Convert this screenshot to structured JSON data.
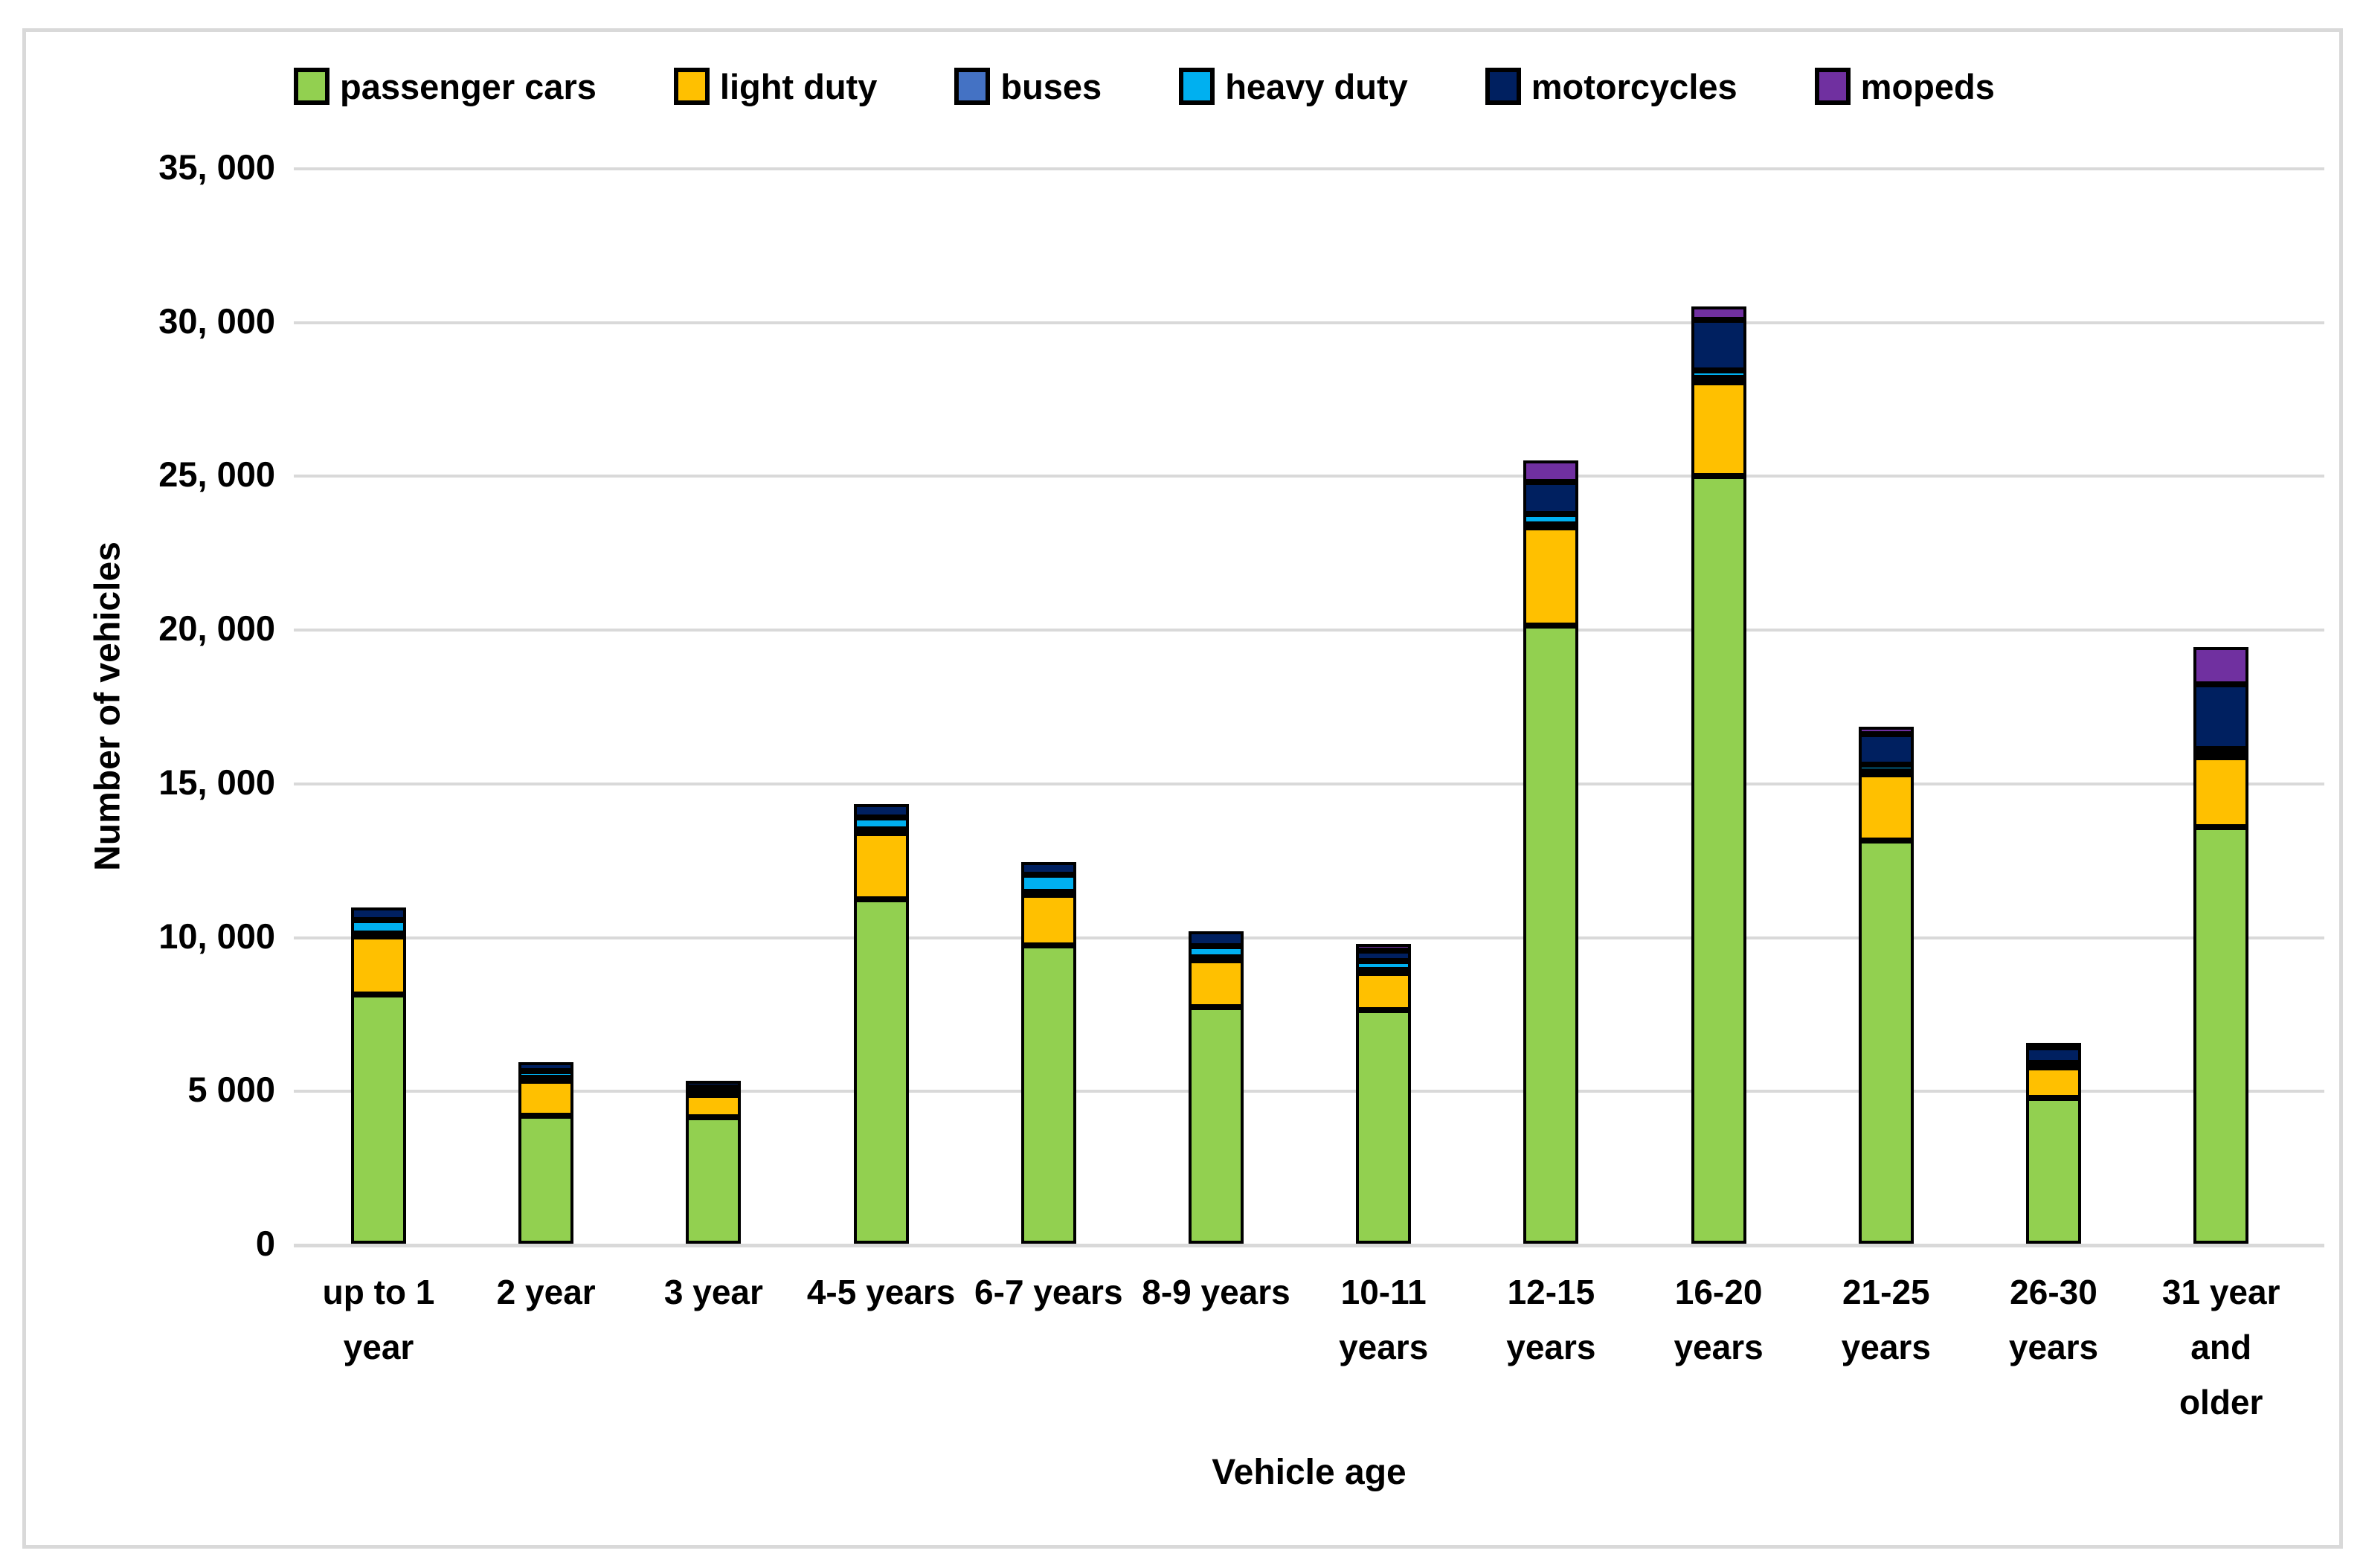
{
  "chart_data": {
    "type": "bar",
    "stacked": true,
    "xlabel": "Vehicle age",
    "ylabel": "Number of vehicles",
    "ylim": [
      0,
      35000
    ],
    "ytick_step": 5000,
    "grid": true,
    "legend_position": "top",
    "gridline_color": "#d9d9d9",
    "bar_border_color": "#000000",
    "ytick_labels_top_to_bottom": [
      "35, 000",
      "30, 000",
      "25, 000",
      "20, 000",
      "15, 000",
      "10, 000",
      "5 000",
      "0"
    ],
    "categories": [
      "up to 1\nyear",
      "2 year",
      "3 year",
      "4-5 years",
      "6-7 years",
      "8-9 years",
      "10-11\nyears",
      "12-15\nyears",
      "16-20\nyears",
      "21-25\nyears",
      "26-30\nyears",
      "31 year\nand\nolder"
    ],
    "series": [
      {
        "name": "passenger cars",
        "color": "#92D050",
        "values": [
          8100,
          4150,
          4100,
          11200,
          9700,
          7700,
          7600,
          20100,
          24950,
          13100,
          4750,
          13550
        ]
      },
      {
        "name": "light duty",
        "color": "#FFC000",
        "values": [
          1900,
          1200,
          800,
          2150,
          1650,
          1550,
          1250,
          3200,
          3050,
          2200,
          1050,
          2300
        ]
      },
      {
        "name": "buses",
        "color": "#4472C4",
        "values": [
          80,
          50,
          40,
          120,
          90,
          60,
          60,
          90,
          160,
          60,
          30,
          70
        ]
      },
      {
        "name": "heavy duty",
        "color": "#00B0F0",
        "values": [
          450,
          200,
          130,
          390,
          560,
          360,
          270,
          330,
          240,
          220,
          40,
          160
        ]
      },
      {
        "name": "motorcycles",
        "color": "#002060",
        "values": [
          400,
          300,
          230,
          440,
          420,
          480,
          360,
          1050,
          1650,
          980,
          520,
          2120
        ]
      },
      {
        "name": "mopeds",
        "color": "#7030A0",
        "values": [
          0,
          0,
          0,
          0,
          0,
          0,
          200,
          700,
          420,
          250,
          150,
          1190
        ]
      }
    ]
  },
  "layout_note_colors": {
    "frame_border": "#d9d9d9",
    "background": "#ffffff",
    "text": "#000000"
  }
}
